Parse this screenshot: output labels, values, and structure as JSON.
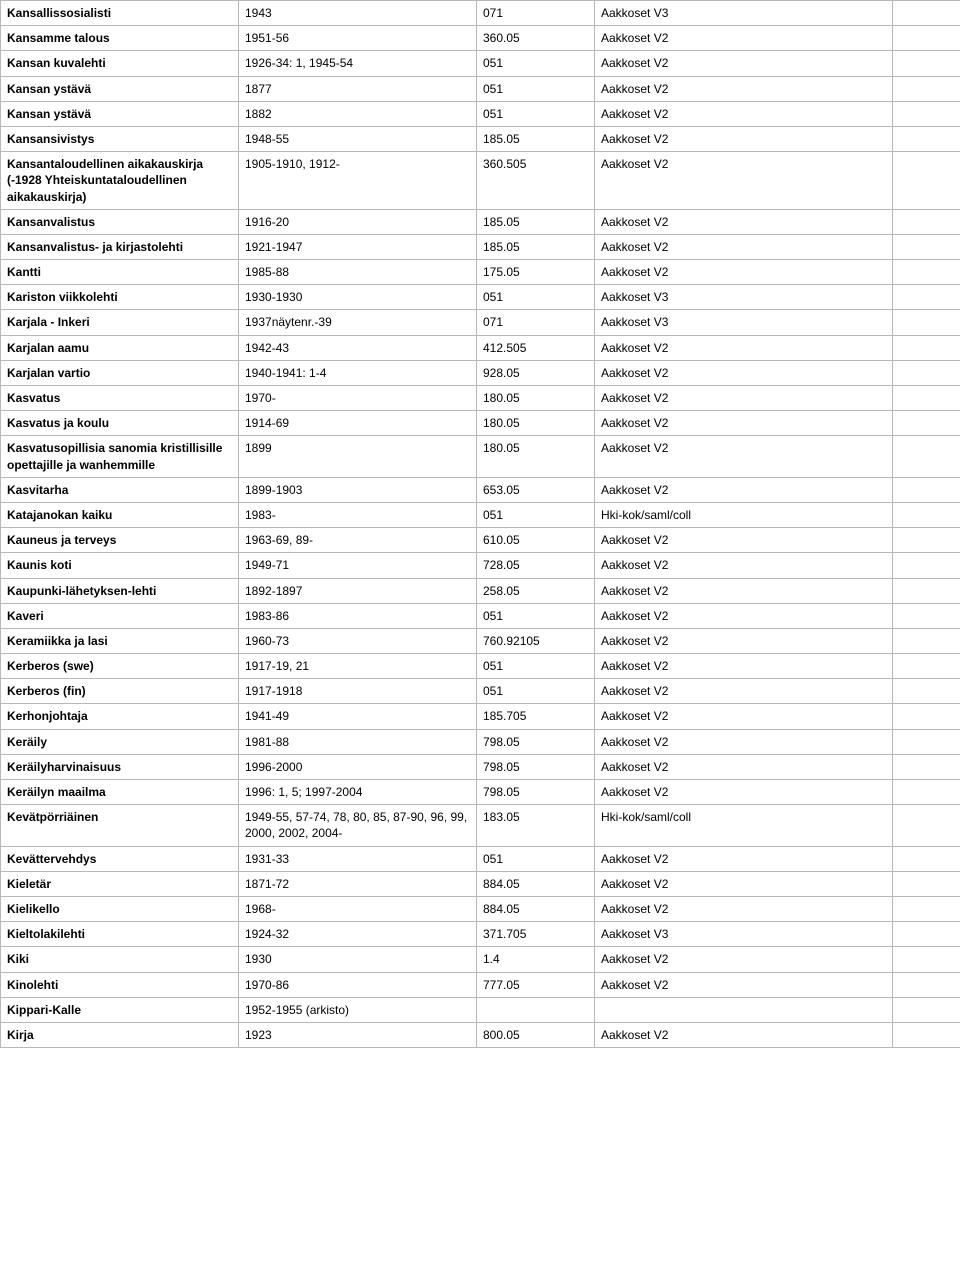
{
  "table": {
    "columns": [
      {
        "key": "name",
        "class": "c0"
      },
      {
        "key": "years",
        "class": "c1"
      },
      {
        "key": "code",
        "class": "c2"
      },
      {
        "key": "location",
        "class": "c3"
      },
      {
        "key": "extra",
        "class": "c4"
      }
    ],
    "rows": [
      {
        "name": "Kansallissosialisti",
        "years": "1943",
        "code": "071",
        "location": "Aakkoset V3",
        "extra": ""
      },
      {
        "name": "Kansamme talous",
        "years": "1951-56",
        "code": "360.05",
        "location": "Aakkoset V2",
        "extra": ""
      },
      {
        "name": "Kansan kuvalehti",
        "years": "1926-34: 1, 1945-54",
        "code": "051",
        "location": "Aakkoset V2",
        "extra": ""
      },
      {
        "name": "Kansan ystävä",
        "years": "1877",
        "code": "051",
        "location": "Aakkoset V2",
        "extra": ""
      },
      {
        "name": "Kansan ystävä",
        "years": "1882",
        "code": "051",
        "location": "Aakkoset V2",
        "extra": ""
      },
      {
        "name": "Kansansivistys",
        "years": "1948-55",
        "code": "185.05",
        "location": "Aakkoset V2",
        "extra": ""
      },
      {
        "name": "Kansantaloudellinen aikakauskirja (-1928 Yhteiskuntataloudellinen aikakauskirja)",
        "years": "1905-1910, 1912-",
        "code": "360.505",
        "location": "Aakkoset V2",
        "extra": ""
      },
      {
        "name": "Kansanvalistus",
        "years": "1916-20",
        "code": "185.05",
        "location": "Aakkoset V2",
        "extra": ""
      },
      {
        "name": "Kansanvalistus- ja kirjastolehti",
        "years": "1921-1947",
        "code": "185.05",
        "location": "Aakkoset V2",
        "extra": ""
      },
      {
        "name": "Kantti",
        "years": "1985-88",
        "code": "175.05",
        "location": "Aakkoset V2",
        "extra": ""
      },
      {
        "name": "Kariston viikkolehti",
        "years": "1930-1930",
        "code": "051",
        "location": "Aakkoset V3",
        "extra": ""
      },
      {
        "name": "Karjala - Inkeri",
        "years": "1937näytenr.-39",
        "code": "071",
        "location": "Aakkoset V3",
        "extra": ""
      },
      {
        "name": "Karjalan aamu",
        "years": "1942-43",
        "code": "412.505",
        "location": "Aakkoset V2",
        "extra": ""
      },
      {
        "name": "Karjalan vartio",
        "years": "1940-1941: 1-4",
        "code": "928.05",
        "location": "Aakkoset V2",
        "extra": ""
      },
      {
        "name": "Kasvatus",
        "years": "1970-",
        "code": "180.05",
        "location": "Aakkoset V2",
        "extra": ""
      },
      {
        "name": "Kasvatus ja koulu",
        "years": "1914-69",
        "code": "180.05",
        "location": "Aakkoset V2",
        "extra": ""
      },
      {
        "name": "Kasvatusopillisia sanomia kristillisille opettajille ja wanhemmille",
        "years": "1899",
        "code": "180.05",
        "location": "Aakkoset V2",
        "extra": ""
      },
      {
        "name": "Kasvitarha",
        "years": "1899-1903",
        "code": "653.05",
        "location": "Aakkoset V2",
        "extra": ""
      },
      {
        "name": "Katajanokan kaiku",
        "years": "1983-",
        "code": "051",
        "location": "Hki-kok/saml/coll",
        "extra": ""
      },
      {
        "name": "Kauneus ja terveys",
        "years": "1963-69, 89-",
        "code": "610.05",
        "location": "Aakkoset V2",
        "extra": ""
      },
      {
        "name": "Kaunis koti",
        "years": "1949-71",
        "code": "728.05",
        "location": "Aakkoset V2",
        "extra": ""
      },
      {
        "name": "Kaupunki-lähetyksen-lehti",
        "years": "1892-1897",
        "code": "258.05",
        "location": "Aakkoset V2",
        "extra": ""
      },
      {
        "name": "Kaveri",
        "years": "1983-86",
        "code": "051",
        "location": "Aakkoset V2",
        "extra": ""
      },
      {
        "name": "Keramiikka ja lasi",
        "years": "1960-73",
        "code": "760.92105",
        "location": "Aakkoset V2",
        "extra": ""
      },
      {
        "name": "Kerberos (swe)",
        "years": "1917-19, 21",
        "code": "051",
        "location": "Aakkoset V2",
        "extra": ""
      },
      {
        "name": "Kerberos (fin)",
        "years": "1917-1918",
        "code": "051",
        "location": "Aakkoset V2",
        "extra": ""
      },
      {
        "name": "Kerhonjohtaja",
        "years": "1941-49",
        "code": "185.705",
        "location": "Aakkoset V2",
        "extra": ""
      },
      {
        "name": "Keräily",
        "years": "1981-88",
        "code": " 798.05",
        "location": "Aakkoset V2",
        "extra": ""
      },
      {
        "name": "Keräilyharvinaisuus",
        "years": "1996-2000",
        "code": "798.05",
        "location": "Aakkoset V2",
        "extra": ""
      },
      {
        "name": "Keräilyn maailma",
        "years": "1996: 1, 5; 1997-2004",
        "code": "798.05",
        "location": "Aakkoset V2",
        "extra": ""
      },
      {
        "name": "Kevätpörriäinen",
        "years": "1949-55, 57-74, 78, 80, 85, 87-90, 96, 99, 2000, 2002, 2004-",
        "code": "183.05",
        "location": "Hki-kok/saml/coll",
        "extra": ""
      },
      {
        "name": "Kevättervehdys",
        "years": "1931-33",
        "code": "051",
        "location": "Aakkoset V2",
        "extra": ""
      },
      {
        "name": "Kieletär",
        "years": "1871-72",
        "code": "884.05",
        "location": "Aakkoset V2",
        "extra": ""
      },
      {
        "name": "Kielikello",
        "years": "1968-",
        "code": "884.05",
        "location": "Aakkoset V2",
        "extra": ""
      },
      {
        "name": "Kieltolakilehti",
        "years": "1924-32",
        "code": "371.705",
        "location": "Aakkoset V3",
        "extra": ""
      },
      {
        "name": "Kiki",
        "years": "1930",
        "code": "1.4",
        "location": "Aakkoset V2",
        "extra": ""
      },
      {
        "name": "Kinolehti",
        "years": "1970-86",
        "code": " 777.05",
        "location": "Aakkoset V2",
        "extra": ""
      },
      {
        "name": "Kippari-Kalle",
        "years": "1952-1955 (arkisto)",
        "code": "",
        "location": "",
        "extra": ""
      },
      {
        "name": "Kirja",
        "years": "1923",
        "code": "800.05",
        "location": "Aakkoset V2",
        "extra": ""
      }
    ]
  }
}
